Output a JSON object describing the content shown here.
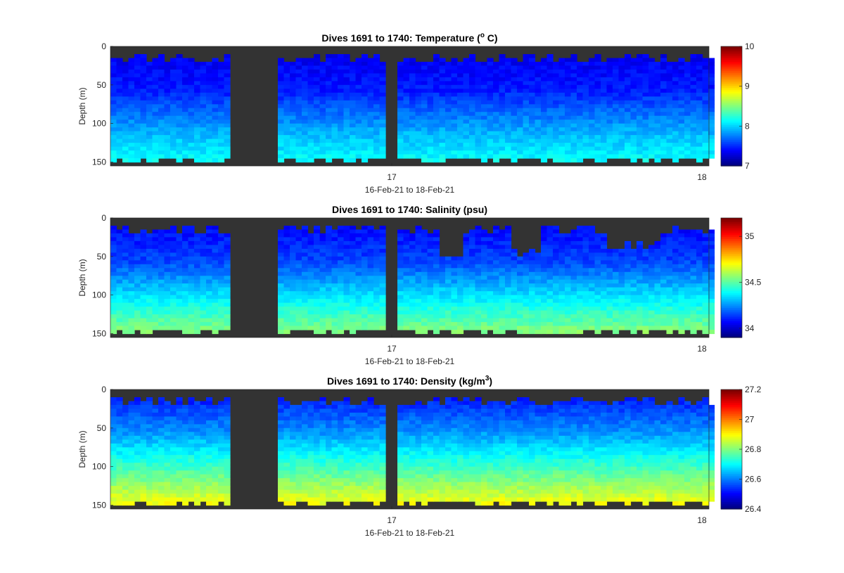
{
  "chart_data": [
    {
      "type": "heatmap",
      "title": "Dives 1691 to 1740: Temperature (",
      "title_super": "o",
      "title_tail": " C)",
      "xlabel": "16-Feb-21 to 18-Feb-21",
      "ylabel": "Depth (m)",
      "x_ticks": [
        "17",
        "18"
      ],
      "y_ticks": [
        "0",
        "50",
        "100",
        "150"
      ],
      "ylim": [
        0,
        155
      ],
      "colorbar_ticks": [
        "7",
        "8",
        "9",
        "10"
      ],
      "clim": [
        7,
        10
      ],
      "value_profile": {
        "shallow": 7.3,
        "mid": 7.45,
        "deep": 7.9,
        "bottom": 8.2
      }
    },
    {
      "type": "heatmap",
      "title": "Dives 1691 to 1740: Salinity (psu)",
      "xlabel": "16-Feb-21 to 18-Feb-21",
      "ylabel": "Depth (m)",
      "x_ticks": [
        "17",
        "18"
      ],
      "y_ticks": [
        "0",
        "50",
        "100",
        "150"
      ],
      "ylim": [
        0,
        155
      ],
      "colorbar_ticks": [
        "34",
        "34.5",
        "35"
      ],
      "clim": [
        33.9,
        35.2
      ],
      "value_profile": {
        "shallow": 34.05,
        "mid": 34.15,
        "deep": 34.4,
        "bottom": 34.6
      }
    },
    {
      "type": "heatmap",
      "title": "Dives 1691 to 1740: Density (kg/m",
      "title_super": "3",
      "title_tail": ")",
      "xlabel": "16-Feb-21 to 18-Feb-21",
      "ylabel": "Depth (m)",
      "x_ticks": [
        "17",
        "18"
      ],
      "y_ticks": [
        "0",
        "50",
        "100",
        "150"
      ],
      "ylim": [
        0,
        155
      ],
      "colorbar_ticks": [
        "26.4",
        "26.6",
        "26.8",
        "27",
        "27.2"
      ],
      "clim": [
        26.4,
        27.2
      ],
      "value_profile": {
        "shallow": 26.5,
        "mid": 26.62,
        "deep": 26.78,
        "bottom": 26.92
      }
    }
  ],
  "colors": {
    "no_data": "#333333",
    "colormap": "jet"
  }
}
